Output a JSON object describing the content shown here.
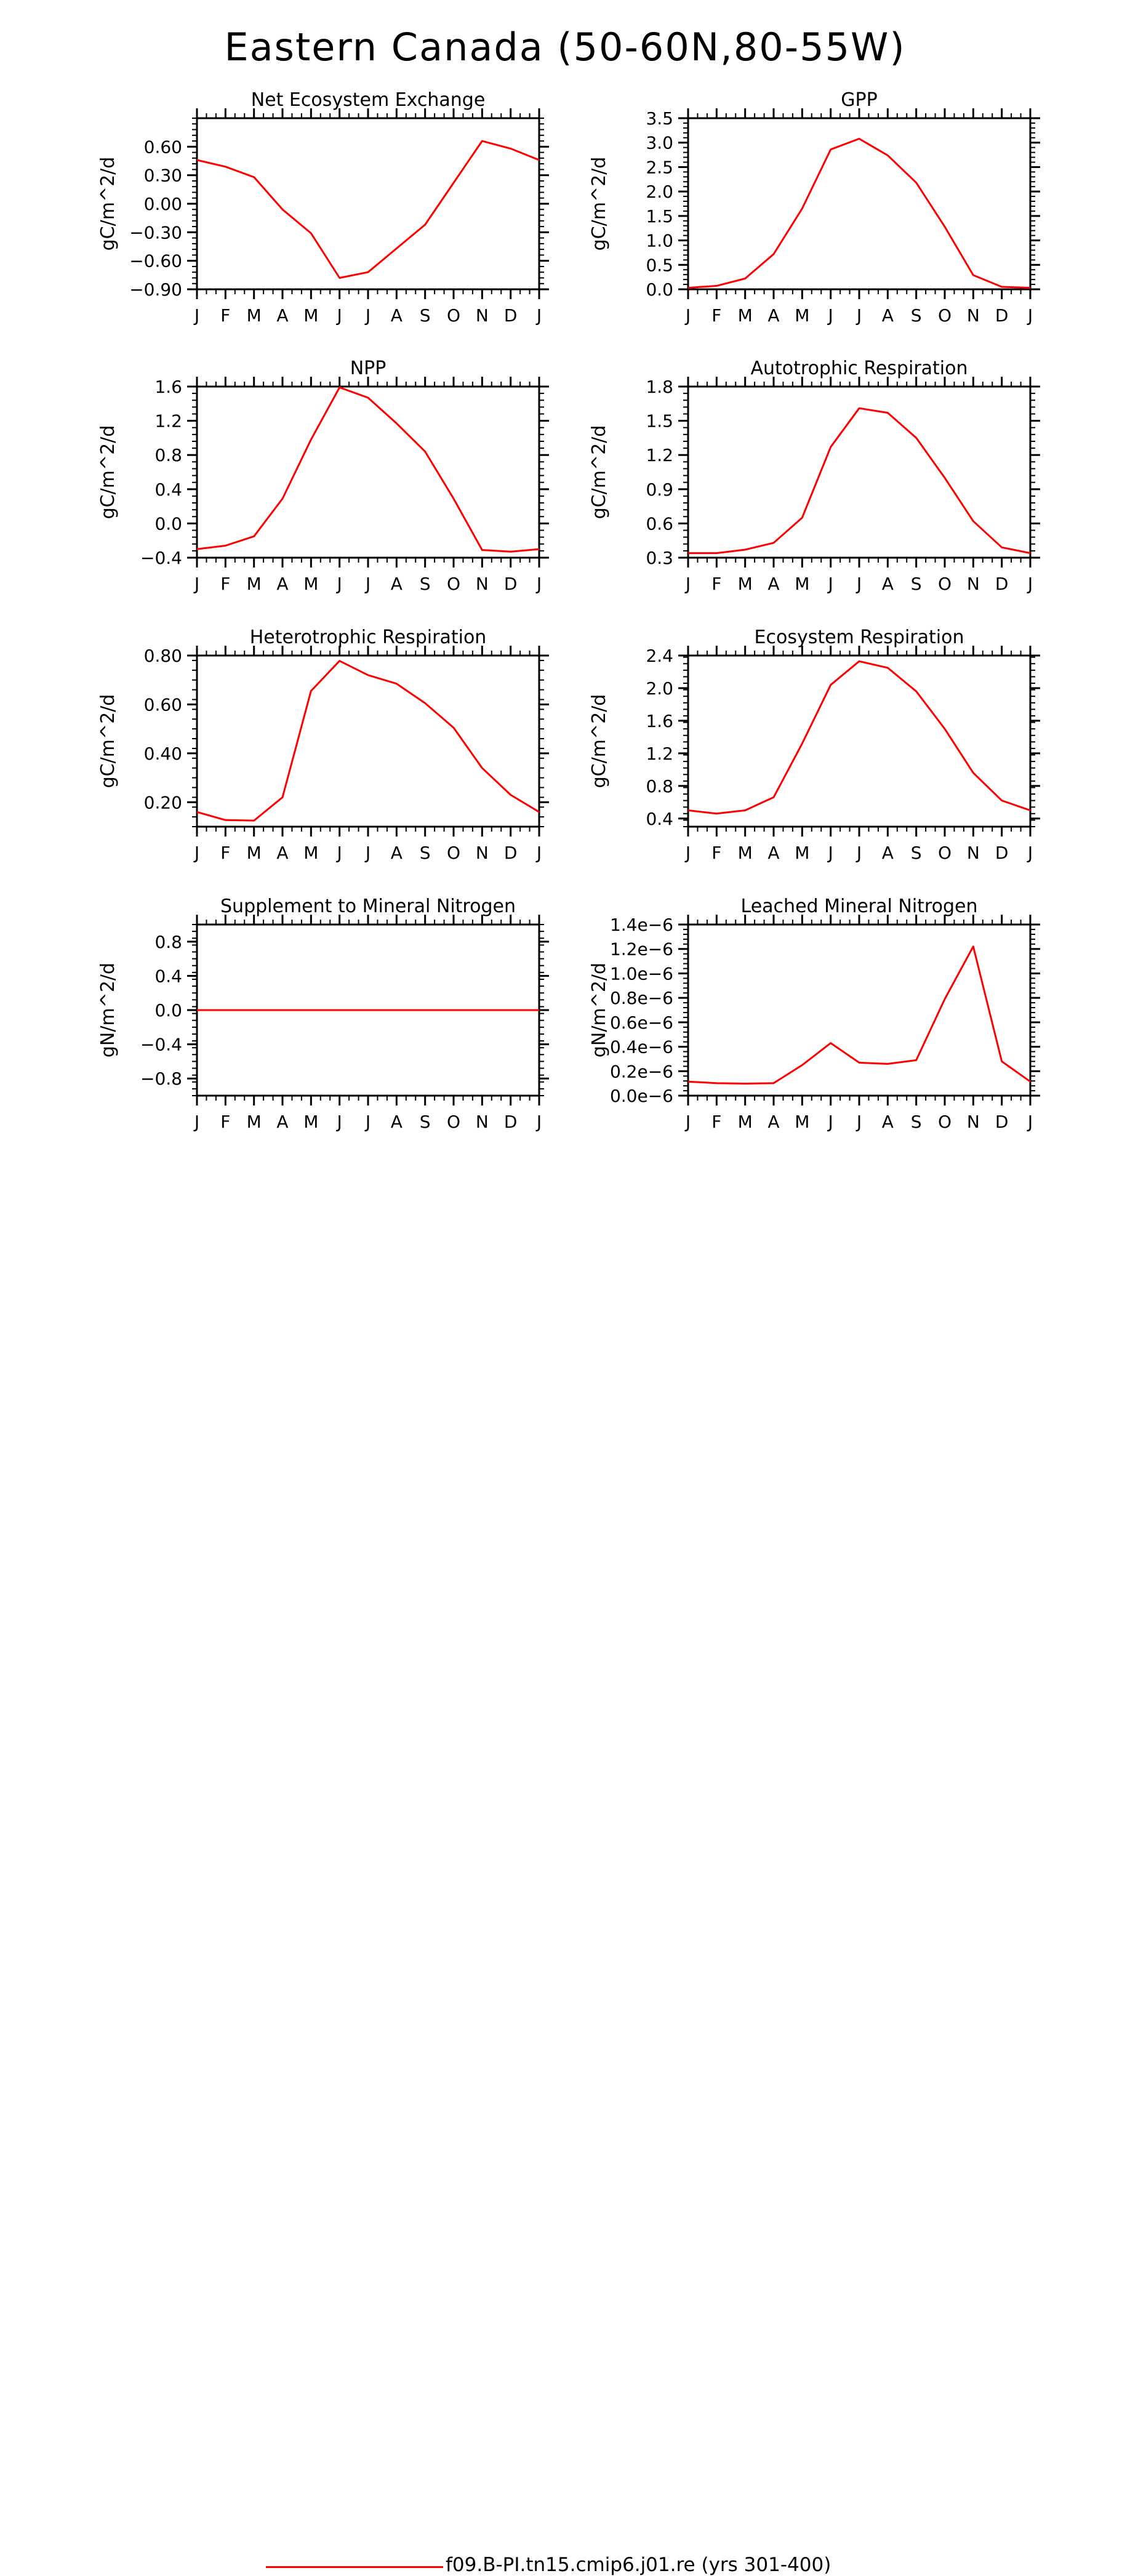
{
  "title": "Eastern Canada (50-60N,80-55W)",
  "legend": {
    "label": "f09.B-PI.tn15.cmip6.j01.re (yrs 301-400)",
    "color": "#ff0000"
  },
  "chart_data": [
    {
      "type": "line",
      "title": "Net Ecosystem Exchange",
      "ylabel": "gC/m^2/d",
      "categories": [
        "J",
        "F",
        "M",
        "A",
        "M",
        "J",
        "J",
        "A",
        "S",
        "O",
        "N",
        "D",
        "J"
      ],
      "ylim": [
        -0.9,
        0.9
      ],
      "yticks": [
        -0.9,
        -0.6,
        -0.3,
        0.0,
        0.3,
        0.6
      ],
      "ytick_labels": [
        "−0.90",
        "−0.60",
        "−0.30",
        "0.00",
        "0.30",
        "0.60"
      ],
      "series": [
        {
          "values": [
            0.46,
            0.39,
            0.28,
            -0.06,
            -0.31,
            -0.78,
            -0.72,
            -0.47,
            -0.22,
            0.22,
            0.66,
            0.58,
            0.46
          ]
        }
      ]
    },
    {
      "type": "line",
      "title": "GPP",
      "ylabel": "gC/m^2/d",
      "categories": [
        "J",
        "F",
        "M",
        "A",
        "M",
        "J",
        "J",
        "A",
        "S",
        "O",
        "N",
        "D",
        "J"
      ],
      "ylim": [
        0,
        3.5
      ],
      "yticks": [
        0.0,
        0.5,
        1.0,
        1.5,
        2.0,
        2.5,
        3.0,
        3.5
      ],
      "ytick_labels": [
        "0.0",
        "0.5",
        "1.0",
        "1.5",
        "2.0",
        "2.5",
        "3.0",
        "3.5"
      ],
      "series": [
        {
          "values": [
            0.03,
            0.07,
            0.22,
            0.72,
            1.65,
            2.86,
            3.08,
            2.74,
            2.18,
            1.28,
            0.29,
            0.05,
            0.03
          ]
        }
      ]
    },
    {
      "type": "line",
      "title": "NPP",
      "ylabel": "gC/m^2/d",
      "categories": [
        "J",
        "F",
        "M",
        "A",
        "M",
        "J",
        "J",
        "A",
        "S",
        "O",
        "N",
        "D",
        "J"
      ],
      "ylim": [
        -0.4,
        1.6
      ],
      "yticks": [
        -0.4,
        0.0,
        0.4,
        0.8,
        1.2,
        1.6
      ],
      "ytick_labels": [
        "−0.4",
        "0.0",
        "0.4",
        "0.8",
        "1.2",
        "1.6"
      ],
      "series": [
        {
          "values": [
            -0.3,
            -0.26,
            -0.15,
            0.29,
            0.98,
            1.59,
            1.47,
            1.17,
            0.84,
            0.29,
            -0.31,
            -0.33,
            -0.3
          ]
        }
      ]
    },
    {
      "type": "line",
      "title": "Autotrophic Respiration",
      "ylabel": "gC/m^2/d",
      "categories": [
        "J",
        "F",
        "M",
        "A",
        "M",
        "J",
        "J",
        "A",
        "S",
        "O",
        "N",
        "D",
        "J"
      ],
      "ylim": [
        0.3,
        1.8
      ],
      "yticks": [
        0.3,
        0.6,
        0.9,
        1.2,
        1.5,
        1.8
      ],
      "ytick_labels": [
        "0.3",
        "0.6",
        "0.9",
        "1.2",
        "1.5",
        "1.8"
      ],
      "series": [
        {
          "values": [
            0.34,
            0.34,
            0.37,
            0.43,
            0.65,
            1.27,
            1.61,
            1.57,
            1.35,
            1.0,
            0.62,
            0.39,
            0.34
          ]
        }
      ]
    },
    {
      "type": "line",
      "title": "Heterotrophic Respiration",
      "ylabel": "gC/m^2/d",
      "categories": [
        "J",
        "F",
        "M",
        "A",
        "M",
        "J",
        "J",
        "A",
        "S",
        "O",
        "N",
        "D",
        "J"
      ],
      "ylim": [
        0.1,
        0.8
      ],
      "yticks": [
        0.2,
        0.4,
        0.6,
        0.8
      ],
      "ytick_labels": [
        "0.20",
        "0.40",
        "0.60",
        "0.80"
      ],
      "series": [
        {
          "values": [
            0.16,
            0.127,
            0.125,
            0.22,
            0.655,
            0.778,
            0.72,
            0.685,
            0.605,
            0.505,
            0.34,
            0.23,
            0.16
          ]
        }
      ]
    },
    {
      "type": "line",
      "title": "Ecosystem Respiration",
      "ylabel": "gC/m^2/d",
      "categories": [
        "J",
        "F",
        "M",
        "A",
        "M",
        "J",
        "J",
        "A",
        "S",
        "O",
        "N",
        "D",
        "J"
      ],
      "ylim": [
        0.3,
        2.4
      ],
      "yticks": [
        0.4,
        0.8,
        1.2,
        1.6,
        2.0,
        2.4
      ],
      "ytick_labels": [
        "0.4",
        "0.8",
        "1.2",
        "1.6",
        "2.0",
        "2.4"
      ],
      "series": [
        {
          "values": [
            0.5,
            0.46,
            0.5,
            0.66,
            1.32,
            2.04,
            2.33,
            2.25,
            1.96,
            1.5,
            0.96,
            0.62,
            0.5
          ]
        }
      ]
    },
    {
      "type": "line",
      "title": "Supplement to Mineral Nitrogen",
      "ylabel": "gN/m^2/d",
      "categories": [
        "J",
        "F",
        "M",
        "A",
        "M",
        "J",
        "J",
        "A",
        "S",
        "O",
        "N",
        "D",
        "J"
      ],
      "ylim": [
        -1.0,
        1.0
      ],
      "yticks": [
        -0.8,
        -0.4,
        0.0,
        0.4,
        0.8
      ],
      "ytick_labels": [
        "−0.8",
        "−0.4",
        "0.0",
        "0.4",
        "0.8"
      ],
      "series": [
        {
          "values": [
            0,
            0,
            0,
            0,
            0,
            0,
            0,
            0,
            0,
            0,
            0,
            0,
            0
          ]
        }
      ]
    },
    {
      "type": "line",
      "title": "Leached Mineral Nitrogen",
      "ylabel": "gN/m^2/d",
      "categories": [
        "J",
        "F",
        "M",
        "A",
        "M",
        "J",
        "J",
        "A",
        "S",
        "O",
        "N",
        "D",
        "J"
      ],
      "ylim": [
        0,
        1.4e-06
      ],
      "yticks": [
        0,
        2e-07,
        4e-07,
        6e-07,
        8e-07,
        1e-06,
        1.2e-06,
        1.4e-06
      ],
      "ytick_labels": [
        "0.0e−6",
        "0.2e−6",
        "0.4e−6",
        "0.6e−6",
        "0.8e−6",
        "1.0e−6",
        "1.2e−6",
        "1.4e−6"
      ],
      "series": [
        {
          "values": [
            1.15e-07,
            1.02e-07,
            9.8e-08,
            1.02e-07,
            2.5e-07,
            4.3e-07,
            2.7e-07,
            2.6e-07,
            2.9e-07,
            7.9e-07,
            1.22e-06,
            2.8e-07,
            1.15e-07
          ]
        }
      ]
    }
  ]
}
